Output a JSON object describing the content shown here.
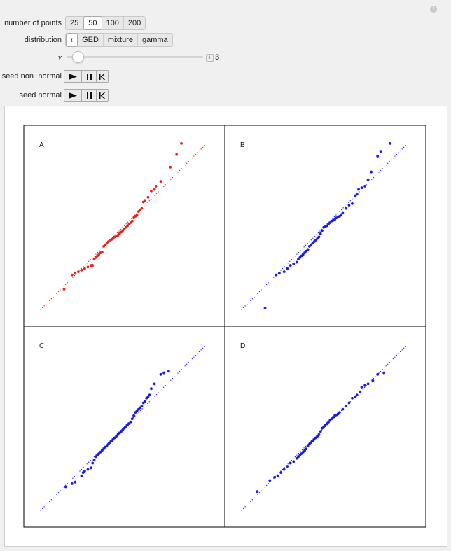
{
  "controls": {
    "number_of_points": {
      "label": "number of points",
      "options": [
        "25",
        "50",
        "100",
        "200"
      ],
      "selected": "50"
    },
    "distribution": {
      "label": "distribution",
      "options": [
        "t",
        "GED",
        "mixture",
        "gamma"
      ],
      "selected": "t"
    },
    "nu": {
      "label": "ν",
      "value": "3",
      "fraction": 0.06
    },
    "seed_non_normal": {
      "label": "seed non−normal"
    },
    "seed_normal": {
      "label": "seed normal"
    }
  },
  "colors": {
    "red": "#e8201a",
    "blue": "#1a1ae6"
  },
  "chart_data": [
    {
      "type": "scatter",
      "title": "A",
      "color": "red",
      "reference_line": [
        [
          -2.6,
          -2.6
        ],
        [
          2.6,
          2.6
        ]
      ],
      "x": [
        -1.85,
        -1.6,
        -1.5,
        -1.4,
        -1.3,
        -1.2,
        -1.1,
        -1.0,
        -0.95,
        -0.9,
        -0.85,
        -0.8,
        -0.75,
        -0.7,
        -0.65,
        -0.6,
        -0.55,
        -0.5,
        -0.45,
        -0.4,
        -0.35,
        -0.3,
        -0.25,
        -0.2,
        -0.15,
        -0.1,
        -0.05,
        0.0,
        0.05,
        0.1,
        0.15,
        0.2,
        0.25,
        0.3,
        0.35,
        0.4,
        0.45,
        0.5,
        0.55,
        0.6,
        0.65,
        0.7,
        0.8,
        0.9,
        1.0,
        1.05,
        1.2,
        1.5,
        1.7,
        1.85
      ],
      "y": [
        -1.95,
        -1.5,
        -1.45,
        -1.4,
        -1.35,
        -1.3,
        -1.25,
        -1.2,
        -1.2,
        -1.0,
        -0.95,
        -0.9,
        -0.85,
        -0.8,
        -0.78,
        -0.6,
        -0.55,
        -0.5,
        -0.45,
        -0.4,
        -0.38,
        -0.35,
        -0.3,
        -0.27,
        -0.25,
        -0.2,
        -0.15,
        -0.1,
        -0.05,
        0.0,
        0.05,
        0.1,
        0.15,
        0.2,
        0.3,
        0.35,
        0.4,
        0.5,
        0.55,
        0.6,
        0.8,
        0.85,
        0.95,
        1.15,
        1.2,
        1.3,
        1.45,
        1.9,
        2.3,
        2.65
      ]
    },
    {
      "type": "scatter",
      "title": "B",
      "color": "blue",
      "reference_line": [
        [
          -2.6,
          -2.6
        ],
        [
          2.6,
          2.6
        ]
      ],
      "x": [
        -1.85,
        -1.5,
        -1.4,
        -1.25,
        -1.15,
        -1.05,
        -0.95,
        -0.85,
        -0.8,
        -0.75,
        -0.7,
        -0.65,
        -0.6,
        -0.55,
        -0.5,
        -0.45,
        -0.4,
        -0.35,
        -0.3,
        -0.25,
        -0.2,
        -0.15,
        -0.1,
        -0.05,
        0.0,
        0.05,
        0.1,
        0.15,
        0.2,
        0.25,
        0.3,
        0.35,
        0.4,
        0.45,
        0.5,
        0.55,
        0.6,
        0.7,
        0.8,
        0.9,
        1.0,
        1.05,
        1.1,
        1.2,
        1.3,
        1.4,
        1.5,
        1.7,
        1.8,
        2.1
      ],
      "y": [
        -2.55,
        -1.5,
        -1.45,
        -1.4,
        -1.3,
        -1.2,
        -1.15,
        -1.1,
        -1.0,
        -0.95,
        -0.9,
        -0.85,
        -0.8,
        -0.75,
        -0.7,
        -0.6,
        -0.55,
        -0.5,
        -0.45,
        -0.4,
        -0.35,
        -0.3,
        -0.2,
        -0.1,
        0.0,
        0.02,
        0.05,
        0.1,
        0.15,
        0.2,
        0.22,
        0.25,
        0.3,
        0.32,
        0.35,
        0.4,
        0.45,
        0.6,
        0.7,
        0.75,
        1.0,
        1.05,
        1.2,
        1.25,
        1.3,
        1.5,
        1.75,
        2.25,
        2.4,
        2.65
      ]
    },
    {
      "type": "scatter",
      "title": "C",
      "color": "blue",
      "reference_line": [
        [
          -2.6,
          -2.6
        ],
        [
          2.6,
          2.6
        ]
      ],
      "x": [
        -1.8,
        -1.6,
        -1.5,
        -1.3,
        -1.25,
        -1.2,
        -1.1,
        -1.0,
        -0.95,
        -0.9,
        -0.85,
        -0.8,
        -0.75,
        -0.7,
        -0.65,
        -0.6,
        -0.55,
        -0.5,
        -0.45,
        -0.4,
        -0.35,
        -0.3,
        -0.25,
        -0.2,
        -0.15,
        -0.1,
        -0.05,
        0.0,
        0.05,
        0.1,
        0.15,
        0.2,
        0.25,
        0.3,
        0.35,
        0.4,
        0.45,
        0.5,
        0.55,
        0.6,
        0.65,
        0.7,
        0.75,
        0.8,
        0.85,
        0.9,
        1.0,
        1.2,
        1.3,
        1.45
      ],
      "y": [
        -1.85,
        -1.75,
        -1.7,
        -1.5,
        -1.4,
        -1.35,
        -1.3,
        -1.25,
        -1.1,
        -1.0,
        -0.9,
        -0.85,
        -0.8,
        -0.75,
        -0.7,
        -0.65,
        -0.6,
        -0.55,
        -0.5,
        -0.45,
        -0.4,
        -0.35,
        -0.3,
        -0.25,
        -0.2,
        -0.15,
        -0.1,
        -0.05,
        0.0,
        0.05,
        0.1,
        0.15,
        0.2,
        0.3,
        0.4,
        0.5,
        0.55,
        0.6,
        0.65,
        0.7,
        0.8,
        0.85,
        0.95,
        1.0,
        1.05,
        1.25,
        1.4,
        1.7,
        1.75,
        1.8
      ]
    },
    {
      "type": "scatter",
      "title": "D",
      "color": "blue",
      "reference_line": [
        [
          -2.6,
          -2.6
        ],
        [
          2.6,
          2.6
        ]
      ],
      "x": [
        -2.1,
        -1.7,
        -1.55,
        -1.45,
        -1.35,
        -1.25,
        -1.15,
        -1.05,
        -0.95,
        -0.85,
        -0.8,
        -0.75,
        -0.7,
        -0.65,
        -0.6,
        -0.55,
        -0.5,
        -0.45,
        -0.4,
        -0.35,
        -0.3,
        -0.25,
        -0.2,
        -0.15,
        -0.1,
        -0.05,
        0.0,
        0.05,
        0.1,
        0.15,
        0.2,
        0.25,
        0.3,
        0.35,
        0.4,
        0.45,
        0.5,
        0.6,
        0.7,
        0.8,
        0.9,
        1.0,
        1.05,
        1.15,
        1.2,
        1.3,
        1.4,
        1.55,
        1.7,
        1.9
      ],
      "y": [
        -2.0,
        -1.65,
        -1.55,
        -1.5,
        -1.4,
        -1.3,
        -1.2,
        -1.1,
        -1.05,
        -0.95,
        -0.9,
        -0.85,
        -0.8,
        -0.75,
        -0.7,
        -0.65,
        -0.55,
        -0.5,
        -0.45,
        -0.4,
        -0.35,
        -0.3,
        -0.25,
        -0.2,
        -0.1,
        0.0,
        0.05,
        0.1,
        0.15,
        0.2,
        0.25,
        0.3,
        0.35,
        0.4,
        0.42,
        0.45,
        0.5,
        0.6,
        0.7,
        0.8,
        0.95,
        1.0,
        1.05,
        1.15,
        1.3,
        1.35,
        1.4,
        1.5,
        1.7,
        1.75
      ]
    }
  ]
}
